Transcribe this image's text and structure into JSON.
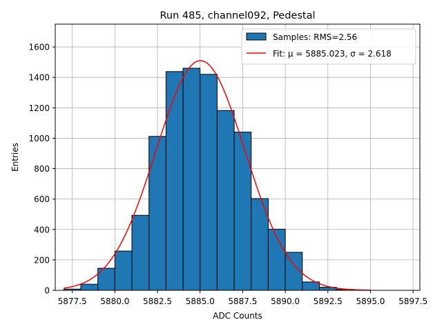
{
  "chart_data": {
    "type": "bar",
    "title": "Run 485, channel092, Pedestal",
    "xlabel": "ADC Counts",
    "ylabel": "Entries",
    "xlim": [
      5876.5,
      5897.9
    ],
    "ylim": [
      0,
      1750
    ],
    "xticks": [
      5877.5,
      5880.0,
      5882.5,
      5885.0,
      5887.5,
      5890.0,
      5892.5,
      5895.0,
      5897.5
    ],
    "xtick_labels": [
      "5877.5",
      "5880.0",
      "5882.5",
      "5885.0",
      "5887.5",
      "5890.0",
      "5892.5",
      "5895.0",
      "5897.5"
    ],
    "yticks": [
      0,
      200,
      400,
      600,
      800,
      1000,
      1200,
      1400,
      1600
    ],
    "ytick_labels": [
      "0",
      "200",
      "400",
      "600",
      "800",
      "1000",
      "1200",
      "1400",
      "1600"
    ],
    "grid": true,
    "legend_placement": "top-right",
    "bins": [
      {
        "x0": 5877,
        "x1": 5878,
        "count": 8
      },
      {
        "x0": 5878,
        "x1": 5879,
        "count": 40
      },
      {
        "x0": 5879,
        "x1": 5880,
        "count": 145
      },
      {
        "x0": 5880,
        "x1": 5881,
        "count": 258
      },
      {
        "x0": 5881,
        "x1": 5882,
        "count": 493
      },
      {
        "x0": 5882,
        "x1": 5883,
        "count": 1012
      },
      {
        "x0": 5883,
        "x1": 5884,
        "count": 1438
      },
      {
        "x0": 5884,
        "x1": 5885,
        "count": 1460
      },
      {
        "x0": 5885,
        "x1": 5886,
        "count": 1420
      },
      {
        "x0": 5886,
        "x1": 5887,
        "count": 1182
      },
      {
        "x0": 5887,
        "x1": 5888,
        "count": 1040
      },
      {
        "x0": 5888,
        "x1": 5889,
        "count": 603
      },
      {
        "x0": 5889,
        "x1": 5890,
        "count": 402
      },
      {
        "x0": 5890,
        "x1": 5891,
        "count": 250
      },
      {
        "x0": 5891,
        "x1": 5892,
        "count": 55
      },
      {
        "x0": 5892,
        "x1": 5893,
        "count": 20
      },
      {
        "x0": 5893,
        "x1": 5894,
        "count": 6
      },
      {
        "x0": 5894,
        "x1": 5895,
        "count": 2
      }
    ],
    "fit": {
      "mu": 5885.023,
      "sigma": 2.618,
      "amplitude": 1510,
      "x_range": [
        5877,
        5895
      ]
    },
    "series": [
      {
        "name": "Samples: RMS=2.56",
        "kind": "histogram",
        "color": "#1f77b4",
        "edge_color": "#000000"
      },
      {
        "name": "Fit: μ = 5885.023, σ = 2.618",
        "kind": "line",
        "color": "#ff0000"
      }
    ]
  }
}
